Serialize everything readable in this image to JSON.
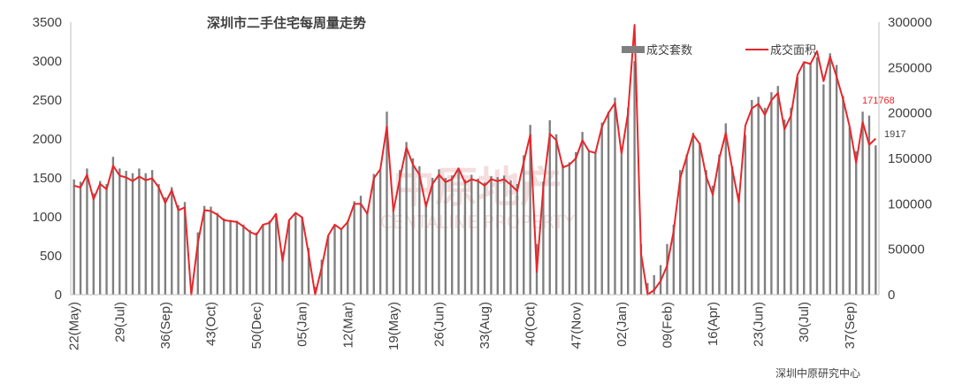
{
  "chart_data": {
    "type": "bar+line",
    "title": "深圳市二手住宅每周量走势",
    "source": "深圳中原研究中心",
    "watermark": {
      "cn": "中原地产",
      "en": "CENTALINE PROPERTY"
    },
    "left_axis": {
      "ylim": [
        0,
        3500
      ],
      "ticks": [
        "0",
        "500",
        "1000",
        "1500",
        "2000",
        "2500",
        "3000",
        "3500"
      ]
    },
    "right_axis": {
      "ylim": [
        0,
        300000
      ],
      "ticks": [
        "0",
        "50000",
        "100000",
        "150000",
        "200000",
        "250000",
        "300000"
      ]
    },
    "x_tick_labels": [
      {
        "label": "22(May)",
        "index": 0
      },
      {
        "label": "29(Jul)",
        "index": 7
      },
      {
        "label": "36(Sep)",
        "index": 14
      },
      {
        "label": "43(Oct)",
        "index": 21
      },
      {
        "label": "50(Dec)",
        "index": 28
      },
      {
        "label": "05(Jan)",
        "index": 35
      },
      {
        "label": "12(Mar)",
        "index": 42
      },
      {
        "label": "19(May)",
        "index": 49
      },
      {
        "label": "26(Jun)",
        "index": 56
      },
      {
        "label": "33(Aug)",
        "index": 63
      },
      {
        "label": "40(Oct)",
        "index": 70
      },
      {
        "label": "47(Nov)",
        "index": 77
      },
      {
        "label": "02(Jan)",
        "index": 84
      },
      {
        "label": "09(Feb)",
        "index": 91
      },
      {
        "label": "16(Apr)",
        "index": 98
      },
      {
        "label": "23(Jun)",
        "index": 105
      },
      {
        "label": "30(Jul)",
        "index": 112
      },
      {
        "label": "37(Sep)",
        "index": 119
      }
    ],
    "series": [
      {
        "name": "成交套数",
        "type": "bar",
        "axis": "left",
        "color": "#7f7f7f",
        "values": [
          1480,
          1450,
          1620,
          1300,
          1460,
          1420,
          1770,
          1620,
          1590,
          1560,
          1620,
          1560,
          1600,
          1420,
          1250,
          1380,
          1150,
          1190,
          50,
          800,
          1140,
          1130,
          1050,
          980,
          960,
          950,
          900,
          830,
          800,
          900,
          950,
          1030,
          550,
          950,
          1050,
          1000,
          600,
          100,
          450,
          750,
          900,
          850,
          950,
          1200,
          1270,
          1050,
          1550,
          1600,
          2350,
          1100,
          1600,
          1960,
          1750,
          1650,
          1200,
          1500,
          1610,
          1500,
          1530,
          1600,
          1480,
          1540,
          1490,
          1440,
          1520,
          1510,
          1530,
          1470,
          1420,
          1790,
          2180,
          650,
          1450,
          2240,
          2060,
          1670,
          1700,
          1830,
          2090,
          1850,
          1820,
          2210,
          2350,
          2530,
          1800,
          2400,
          3000,
          650,
          150,
          250,
          380,
          650,
          900,
          1600,
          1800,
          2080,
          1950,
          1600,
          1400,
          1800,
          2200,
          1650,
          1300,
          2050,
          2500,
          2540,
          2400,
          2600,
          2680,
          2250,
          2400,
          2800,
          2980,
          2980,
          3050,
          2700,
          3100,
          2950,
          2550,
          2150,
          1840,
          2350,
          2300,
          1917
        ]
      },
      {
        "name": "成交面积",
        "type": "line",
        "axis": "right",
        "color": "#e8262a",
        "values": [
          120000,
          118000,
          132000,
          105000,
          122000,
          116000,
          142000,
          131000,
          129000,
          125000,
          130000,
          126000,
          128000,
          118000,
          101000,
          115000,
          93000,
          96000,
          0,
          57000,
          93000,
          92000,
          88000,
          82000,
          81000,
          80000,
          75000,
          69000,
          66000,
          77000,
          79000,
          89000,
          37000,
          82000,
          90000,
          85000,
          45000,
          0,
          30000,
          65000,
          77000,
          72000,
          80000,
          100000,
          100000,
          89000,
          128000,
          138000,
          185000,
          92000,
          128000,
          162000,
          143000,
          132000,
          97000,
          122000,
          132000,
          124000,
          127000,
          139000,
          123000,
          127000,
          125000,
          120000,
          127000,
          125000,
          127000,
          121000,
          114000,
          146000,
          176000,
          25000,
          118000,
          177000,
          170000,
          140000,
          143000,
          150000,
          170000,
          158000,
          156000,
          185000,
          200000,
          211000,
          155000,
          200000,
          297000,
          45000,
          0,
          5000,
          15000,
          32000,
          70000,
          128000,
          152000,
          176000,
          166000,
          130000,
          110000,
          150000,
          178000,
          138000,
          102000,
          186000,
          205000,
          210000,
          198000,
          214000,
          222000,
          182000,
          197000,
          242000,
          256000,
          254000,
          268000,
          235000,
          262000,
          240000,
          215000,
          185000,
          145000,
          190000,
          165000,
          171768
        ]
      }
    ],
    "annotations": [
      {
        "text": "171768",
        "color": "#e8262a"
      },
      {
        "text": "1917",
        "color": "#404040"
      }
    ],
    "legend": {
      "position": "top-right"
    },
    "grid": false
  }
}
